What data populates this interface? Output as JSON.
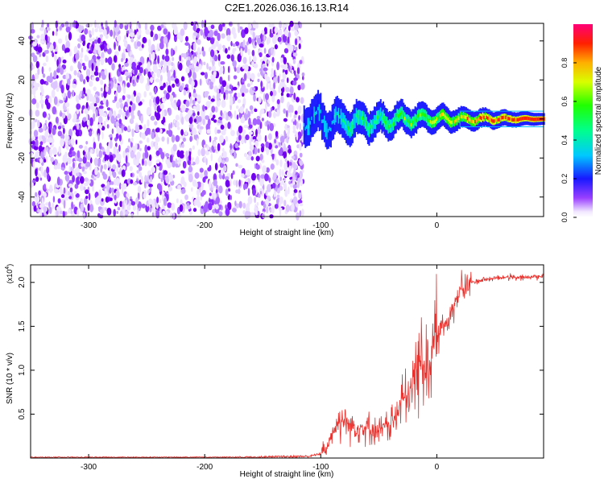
{
  "title": "C2E1.2026.036.16.13.R14",
  "chart_data": [
    {
      "type": "heatmap",
      "xlabel": "Height of straight line (km)",
      "ylabel": "Frequency (Hz)",
      "xlim": [
        -350,
        92
      ],
      "ylim": [
        -50,
        49
      ],
      "x_ticks": [
        -300,
        -200,
        -100,
        0
      ],
      "x_tick_labels": [
        "-300",
        "-200",
        "-100",
        "0"
      ],
      "y_ticks": [
        -40,
        -20,
        0,
        20,
        40
      ],
      "y_tick_labels": [
        "-40",
        "-20",
        "0",
        "20",
        "40"
      ],
      "colorbar": {
        "label": "Normalized spectral amplitude",
        "range": [
          0,
          1
        ],
        "ticks": [
          0.0,
          0.2,
          0.4,
          0.6,
          0.8
        ],
        "tick_labels": [
          "0.0",
          "0.2",
          "0.4",
          "0.6",
          "0.8"
        ]
      },
      "regions": [
        {
          "name": "noise",
          "x_range": [
            -350,
            -115
          ],
          "freq_range": [
            -50,
            49
          ],
          "amplitude": [
            0.0,
            0.15
          ]
        },
        {
          "name": "signal",
          "x_range": [
            -115,
            92
          ],
          "center_freq_hz": 0,
          "amplitude_peak": 0.95
        }
      ]
    },
    {
      "type": "line",
      "xlabel": "Height of straight line (km)",
      "ylabel": "SNR (10 * v/v)",
      "y_multiplier": "(x10",
      "y_multiplier_exp": "4",
      "y_multiplier_close": ")",
      "xlim": [
        -350,
        92
      ],
      "ylim": [
        0,
        2.2
      ],
      "x_ticks": [
        -300,
        -200,
        -100,
        0
      ],
      "x_tick_labels": [
        "-300",
        "-200",
        "-100",
        "0"
      ],
      "y_ticks": [
        0.5,
        1.0,
        1.5,
        2.0
      ],
      "y_tick_labels": [
        "0.5",
        "1.0",
        "1.5",
        "2.0"
      ],
      "series": [
        {
          "name": "SNR",
          "color": "#e8302c",
          "x": [
            -350,
            -300,
            -200,
            -110,
            -100,
            -95,
            -90,
            -85,
            -80,
            -75,
            -70,
            -60,
            -50,
            -40,
            -35,
            -30,
            -25,
            -20,
            -15,
            -12,
            -10,
            -5,
            0,
            5,
            10,
            15,
            20,
            25,
            30,
            40,
            50,
            60,
            70,
            80,
            92
          ],
          "y": [
            0.0,
            0.0,
            0.0,
            0.02,
            0.05,
            0.1,
            0.3,
            0.4,
            0.45,
            0.38,
            0.35,
            0.35,
            0.3,
            0.4,
            0.45,
            0.7,
            0.6,
            0.9,
            1.1,
            1.2,
            1.0,
            1.2,
            1.35,
            1.5,
            1.6,
            1.75,
            1.9,
            1.95,
            2.0,
            2.03,
            2.05,
            2.06,
            2.05,
            2.06,
            2.07
          ]
        }
      ]
    }
  ],
  "colors": {
    "line": "#e8302c",
    "noise": "#7a00f0",
    "axis": "#000000"
  }
}
